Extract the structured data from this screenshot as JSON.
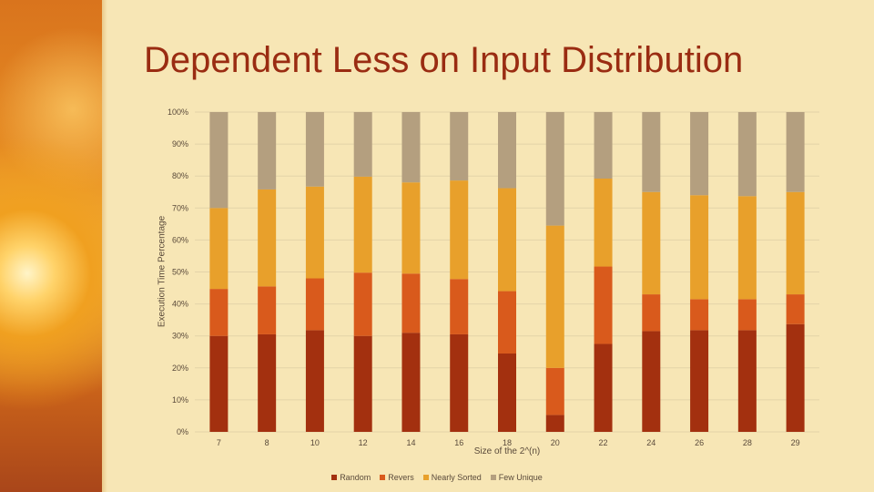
{
  "slide": {
    "title": "Dependent Less on Input Distribution"
  },
  "chart_data": {
    "type": "bar",
    "stacked": true,
    "categories": [
      "7",
      "8",
      "10",
      "12",
      "14",
      "16",
      "18",
      "20",
      "22",
      "24",
      "26",
      "28",
      "29"
    ],
    "series": [
      {
        "name": "Random",
        "color": "#a3300f",
        "values": [
          30,
          30.5,
          31.8,
          30,
          31,
          30.5,
          24.5,
          5.3,
          27.5,
          31.5,
          31.8,
          31.8,
          33.7
        ]
      },
      {
        "name": "Revers",
        "color": "#d95a1c",
        "values": [
          14.7,
          15,
          16.2,
          19.8,
          18.5,
          17.3,
          19.5,
          14.7,
          24.2,
          11.5,
          9.7,
          9.7,
          9.3
        ]
      },
      {
        "name": "Nearly Sorted",
        "color": "#e8a02b",
        "values": [
          25.3,
          30.3,
          28.7,
          30,
          28.5,
          30.8,
          32.2,
          44.5,
          27.5,
          32,
          32.5,
          32.2,
          32
        ]
      },
      {
        "name": "Few Unique",
        "color": "#b49f7f",
        "values": [
          30,
          24.2,
          23.3,
          20.2,
          22,
          21.4,
          23.8,
          35.5,
          20.8,
          25,
          26,
          26.3,
          25
        ]
      }
    ],
    "ylim": [
      0,
      100
    ],
    "yticks": [
      "0%",
      "10%",
      "20%",
      "30%",
      "40%",
      "50%",
      "60%",
      "70%",
      "80%",
      "90%",
      "100%"
    ],
    "xlabel": "Size of the 2^(n)",
    "ylabel": "Execution Time Percentage",
    "grid": true,
    "legend": "bottom"
  }
}
